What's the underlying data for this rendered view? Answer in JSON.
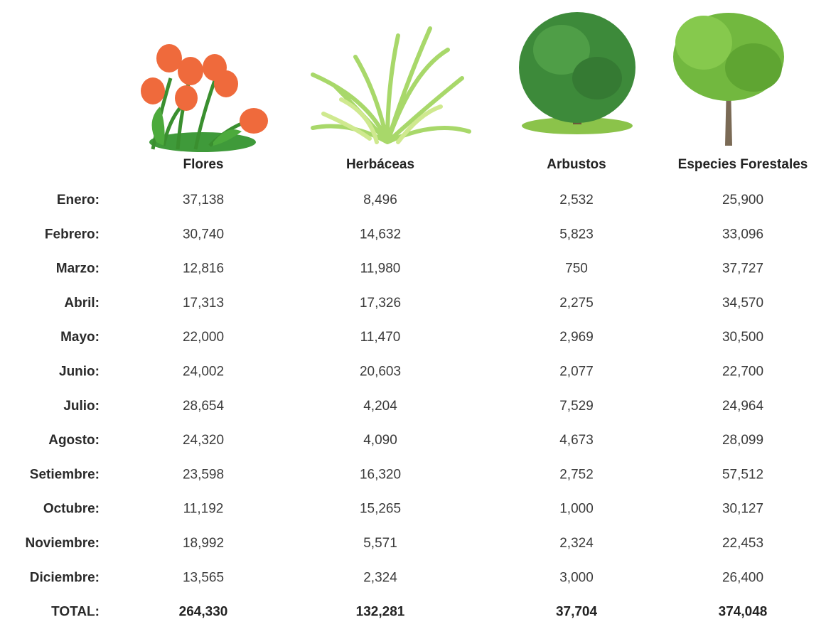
{
  "table": {
    "columns": [
      "Flores",
      "Herbáceas",
      "Arbustos",
      "Especies Forestales"
    ],
    "rows": [
      {
        "label": "Enero:",
        "values": [
          "37,138",
          "8,496",
          "2,532",
          "25,900"
        ]
      },
      {
        "label": "Febrero:",
        "values": [
          "30,740",
          "14,632",
          "5,823",
          "33,096"
        ]
      },
      {
        "label": "Marzo:",
        "values": [
          "12,816",
          "11,980",
          "750",
          "37,727"
        ]
      },
      {
        "label": "Abril:",
        "values": [
          "17,313",
          "17,326",
          "2,275",
          "34,570"
        ]
      },
      {
        "label": "Mayo:",
        "values": [
          "22,000",
          "11,470",
          "2,969",
          "30,500"
        ]
      },
      {
        "label": "Junio:",
        "values": [
          "24,002",
          "20,603",
          "2,077",
          "22,700"
        ]
      },
      {
        "label": "Julio:",
        "values": [
          "28,654",
          "4,204",
          "7,529",
          "24,964"
        ]
      },
      {
        "label": "Agosto:",
        "values": [
          "24,320",
          "4,090",
          "4,673",
          "28,099"
        ]
      },
      {
        "label": "Setiembre:",
        "values": [
          "23,598",
          "16,320",
          "2,752",
          "57,512"
        ]
      },
      {
        "label": "Octubre:",
        "values": [
          "11,192",
          "15,265",
          "1,000",
          "30,127"
        ]
      },
      {
        "label": "Noviembre:",
        "values": [
          "18,992",
          "5,571",
          "2,324",
          "22,453"
        ]
      },
      {
        "label": "Diciembre:",
        "values": [
          "13,565",
          "2,324",
          "3,000",
          "26,400"
        ]
      }
    ],
    "total": {
      "label": "TOTAL:",
      "values": [
        "264,330",
        "132,281",
        "37,704",
        "374,048"
      ]
    }
  }
}
